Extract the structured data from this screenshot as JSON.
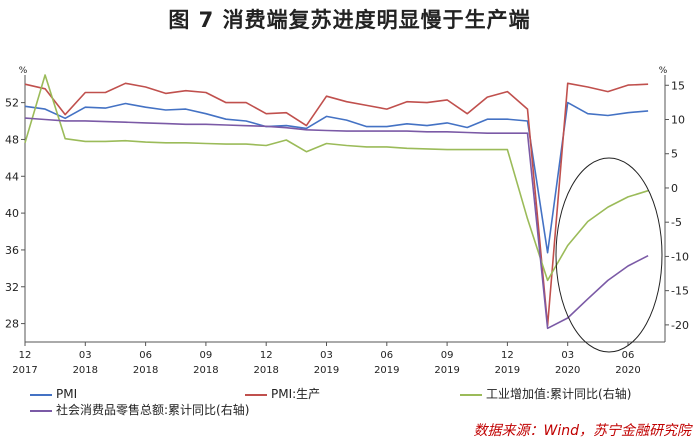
{
  "chart_data": {
    "type": "line",
    "title": "图 7  消费端复苏进度明显慢于生产端",
    "left_axis": {
      "unit": "%",
      "min": 26,
      "max": 55,
      "ticks": [
        28,
        32,
        36,
        40,
        44,
        48,
        52
      ]
    },
    "right_axis": {
      "unit": "%",
      "min": -22.5,
      "max": 16.5,
      "ticks": [
        15,
        10,
        5,
        0,
        -5,
        -10,
        -15,
        -20
      ]
    },
    "x_ticks": [
      {
        "month": "12",
        "year": "2017"
      },
      {
        "month": "03",
        "year": "2018"
      },
      {
        "month": "06",
        "year": "2018"
      },
      {
        "month": "09",
        "year": "2018"
      },
      {
        "month": "12",
        "year": "2018"
      },
      {
        "month": "03",
        "year": "2019"
      },
      {
        "month": "06",
        "year": "2019"
      },
      {
        "month": "09",
        "year": "2019"
      },
      {
        "month": "12",
        "year": "2019"
      },
      {
        "month": "03",
        "year": "2020"
      },
      {
        "month": "06",
        "year": "2020"
      }
    ],
    "x_count": 32,
    "series": [
      {
        "name": "PMI",
        "axis": "left",
        "color": "#4472c4",
        "values": [
          51.6,
          51.3,
          50.3,
          51.5,
          51.4,
          51.9,
          51.5,
          51.2,
          51.3,
          50.8,
          50.2,
          50.0,
          49.4,
          49.5,
          49.2,
          50.5,
          50.1,
          49.4,
          49.4,
          49.7,
          49.5,
          49.8,
          49.3,
          50.2,
          50.2,
          50.0,
          35.7,
          52.0,
          50.8,
          50.6,
          50.9,
          51.1
        ]
      },
      {
        "name": "PMI:生产",
        "axis": "left",
        "color": "#c0504d",
        "values": [
          54.0,
          53.5,
          50.7,
          53.1,
          53.1,
          54.1,
          53.7,
          53.0,
          53.3,
          53.1,
          52.0,
          52.0,
          50.8,
          50.9,
          49.5,
          52.7,
          52.1,
          51.7,
          51.3,
          52.1,
          52.0,
          52.3,
          50.8,
          52.6,
          53.2,
          51.3,
          27.8,
          54.1,
          53.7,
          53.2,
          53.9,
          54.0
        ]
      },
      {
        "name": "工业增加值:累计同比(右轴)",
        "axis": "right",
        "color": "#9bbb59",
        "values": [
          6.6,
          16.5,
          7.2,
          6.8,
          6.8,
          6.9,
          6.7,
          6.6,
          6.6,
          6.5,
          6.4,
          6.4,
          6.2,
          7.0,
          5.3,
          6.5,
          6.2,
          6.0,
          6.0,
          5.8,
          5.7,
          5.6,
          5.6,
          5.6,
          5.6,
          -4.5,
          -13.5,
          -8.4,
          -4.9,
          -2.8,
          -1.3,
          -0.4
        ]
      },
      {
        "name": "社会消费品零售总额:累计同比(右轴)",
        "axis": "right",
        "color": "#7b5aa6",
        "values": [
          10.2,
          10.0,
          9.8,
          9.8,
          9.7,
          9.6,
          9.5,
          9.4,
          9.3,
          9.3,
          9.2,
          9.1,
          9.0,
          8.8,
          8.5,
          8.4,
          8.3,
          8.3,
          8.3,
          8.3,
          8.2,
          8.2,
          8.1,
          8.0,
          8.0,
          8.0,
          -20.5,
          -19.0,
          -16.2,
          -13.5,
          -11.4,
          -9.9
        ]
      }
    ],
    "annotation": "ellipse highlighting consumer recovery 2020",
    "grid": false
  },
  "legend": [
    {
      "label": "PMI",
      "color": "#4472c4"
    },
    {
      "label": "PMI:生产",
      "color": "#c0504d"
    },
    {
      "label": "工业增加值:累计同比(右轴)",
      "color": "#9bbb59"
    },
    {
      "label": "社会消费品零售总额:累计同比(右轴)",
      "color": "#7b5aa6"
    }
  ],
  "source": "数据来源：Wind，苏宁金融研究院"
}
